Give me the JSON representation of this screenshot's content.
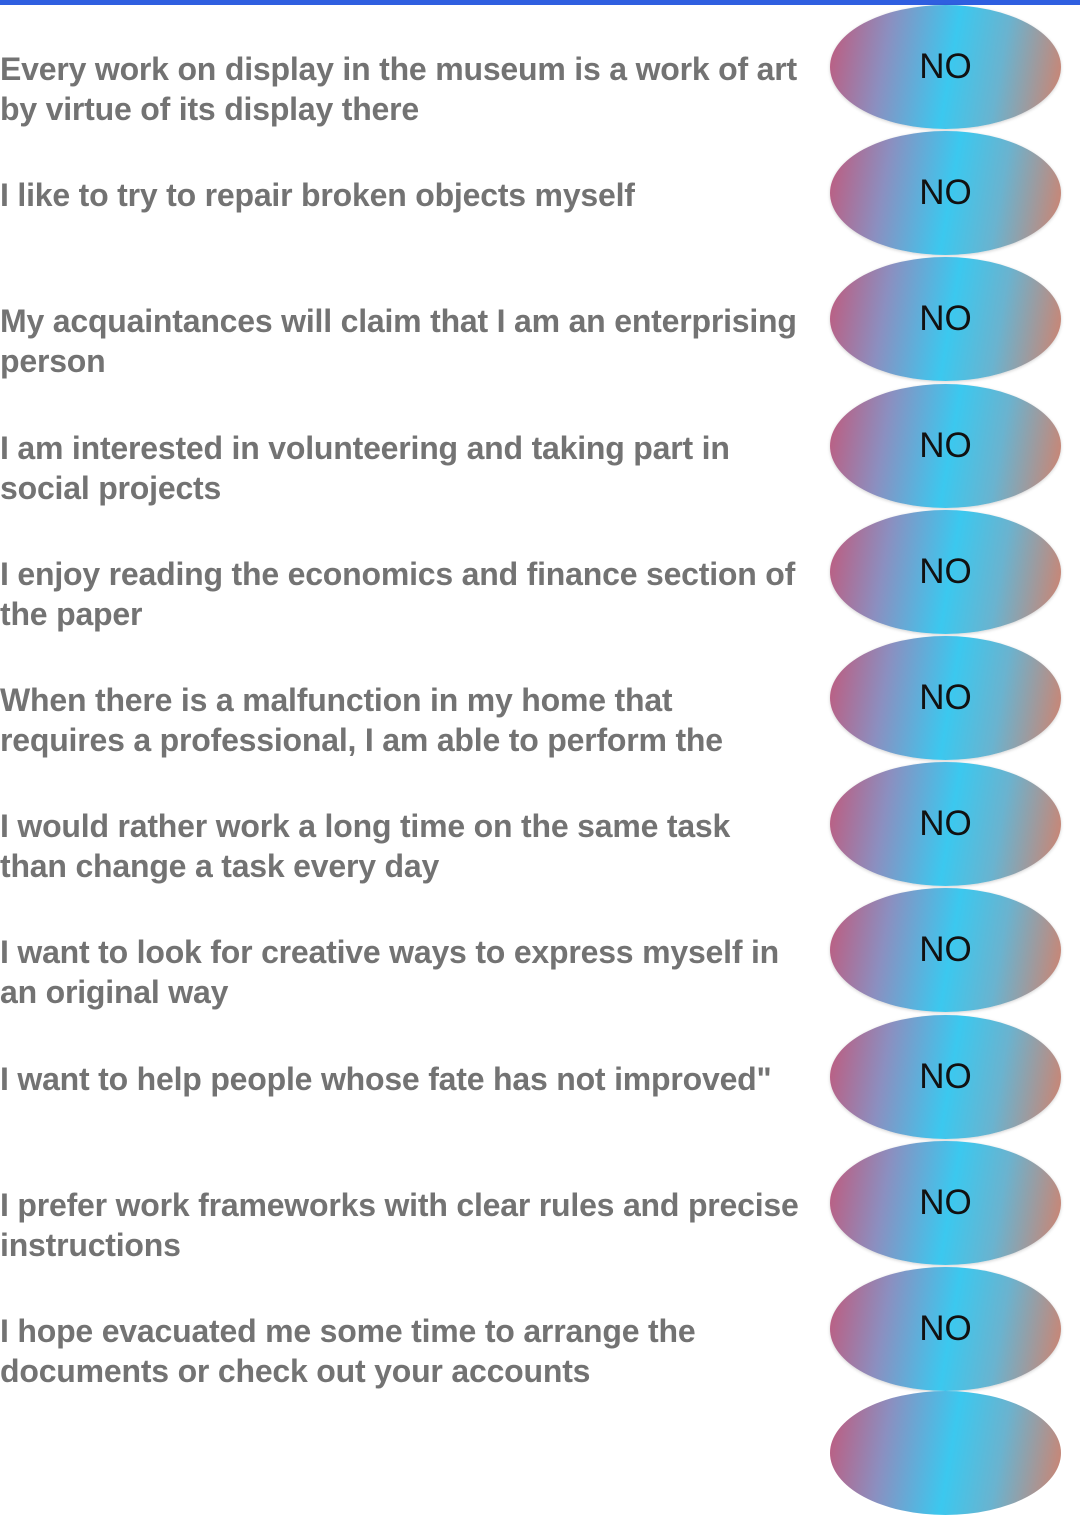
{
  "questions": [
    {
      "text": "Every work on display in the museum is a work of art by virtue of its display there",
      "answer": "NO"
    },
    {
      "text": "I like to try to repair broken objects myself",
      "answer": "NO"
    },
    {
      "text": "My acquaintances will claim that I am an enterprising person",
      "answer": "NO"
    },
    {
      "text": "I am interested in volunteering and taking part in social projects",
      "answer": "NO"
    },
    {
      "text": "I enjoy reading the economics and finance section of the paper",
      "answer": "NO"
    },
    {
      "text": "When there is a malfunction in my home that requires a professional, I am able to perform the",
      "answer": "NO"
    },
    {
      "text": "I would rather work a long time on the same task than change a task every day",
      "answer": "NO"
    },
    {
      "text": "I want to look for creative ways to express myself in an original way",
      "answer": "NO"
    },
    {
      "text": "I want to help people whose fate has not improved\"",
      "answer": "NO"
    },
    {
      "text": "I prefer work frameworks with clear rules and precise instructions",
      "answer": "NO"
    },
    {
      "text": "I hope evacuated me some time to arrange the documents or check out your accounts",
      "answer": "NO"
    }
  ],
  "colors": {
    "accent_bar": "#2f5fe0",
    "question_text": "#737373",
    "button_gradient": [
      "#c2587a",
      "#3bc8ef",
      "#d5806a"
    ]
  }
}
